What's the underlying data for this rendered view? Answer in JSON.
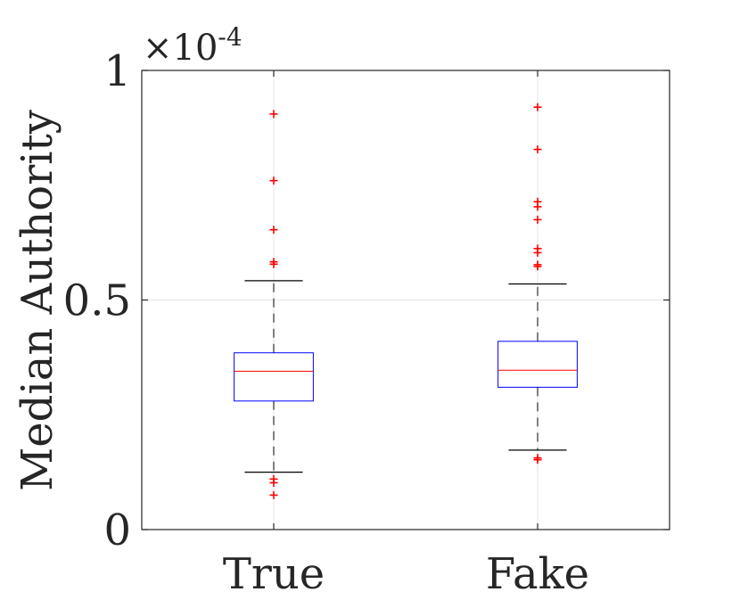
{
  "chart_data": {
    "type": "boxplot",
    "title": "",
    "xlabel": "",
    "ylabel": "Median Authority",
    "y_multiplier": "×10",
    "y_multiplier_exponent": "-4",
    "ylim": [
      0,
      1
    ],
    "yticks": [
      0,
      0.5,
      1
    ],
    "ytick_labels": [
      "0",
      "0.5",
      "1"
    ],
    "grid": true,
    "categories": [
      "True",
      "Fake"
    ],
    "boxes": [
      {
        "category": "True",
        "q1": 0.28,
        "median": 0.345,
        "q3": 0.385,
        "whisker_low": 0.125,
        "whisker_high": 0.542,
        "outliers": [
          0.905,
          0.76,
          0.653,
          0.583,
          0.578,
          0.11,
          0.102,
          0.075
        ]
      },
      {
        "category": "Fake",
        "q1": 0.31,
        "median": 0.347,
        "q3": 0.41,
        "whisker_low": 0.173,
        "whisker_high": 0.535,
        "outliers": [
          0.92,
          0.828,
          0.714,
          0.703,
          0.675,
          0.612,
          0.603,
          0.577,
          0.573,
          0.156,
          0.152
        ]
      }
    ],
    "colors": {
      "box": "#0000ff",
      "median": "#ff0000",
      "whisker": "#000000",
      "outlier": "#ff0000",
      "grid": "#e6e6e6",
      "axis": "#262626"
    }
  }
}
